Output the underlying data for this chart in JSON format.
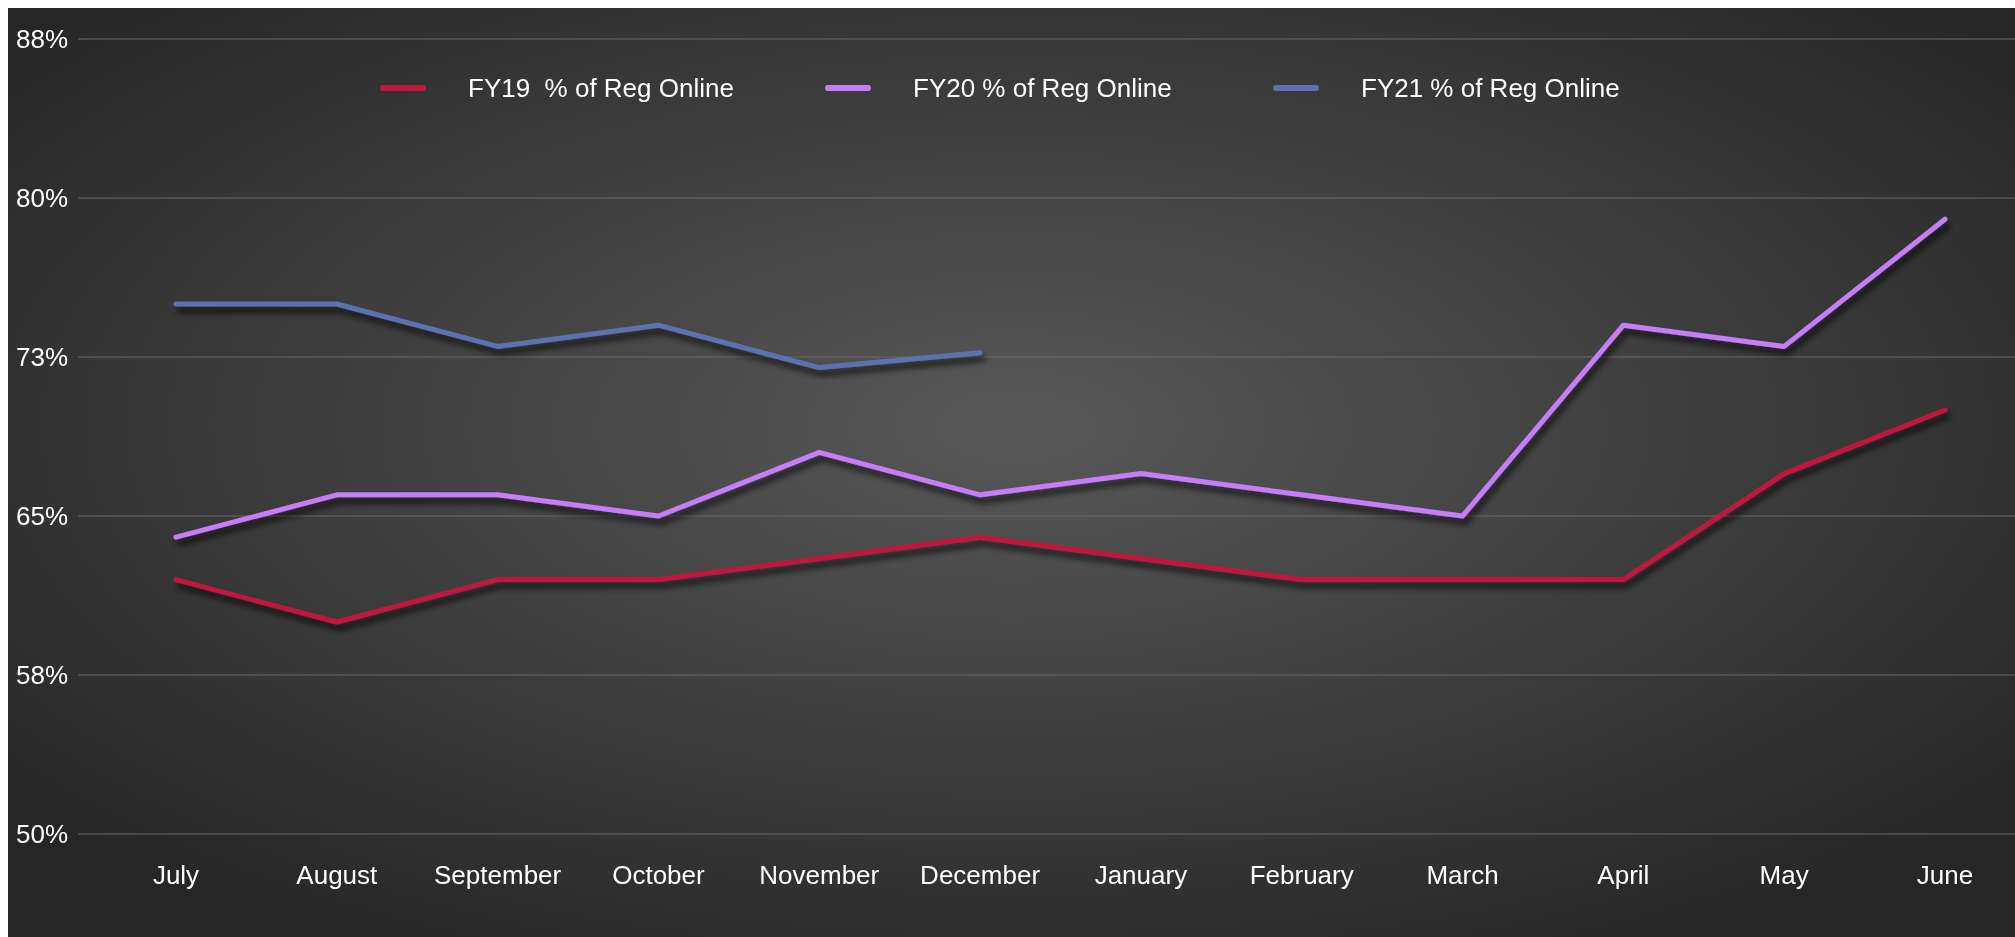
{
  "chart_data": {
    "type": "line",
    "categories": [
      "July",
      "August",
      "September",
      "October",
      "November",
      "December",
      "January",
      "February",
      "March",
      "April",
      "May",
      "June"
    ],
    "series": [
      {
        "name": "FY19  % of Reg Online",
        "color": "#c0183f",
        "values": [
          62,
          60,
          62,
          62,
          63,
          64,
          63,
          62,
          62,
          62,
          67,
          70
        ]
      },
      {
        "name": "FY20 % of Reg Online",
        "color": "#c77dfa",
        "values": [
          64,
          66,
          66,
          65,
          68,
          66,
          67,
          66,
          65,
          74,
          73,
          79
        ]
      },
      {
        "name": "FY21 % of Reg Online",
        "color": "#5c72b0",
        "values": [
          75,
          75,
          73,
          74,
          72,
          72.7,
          null,
          null,
          null,
          null,
          null,
          null
        ]
      }
    ],
    "ylim": [
      50,
      87.5
    ],
    "yticks": [
      {
        "value": 50,
        "label": "50%"
      },
      {
        "value": 57.5,
        "label": "58%"
      },
      {
        "value": 65,
        "label": "65%"
      },
      {
        "value": 72.5,
        "label": "73%"
      },
      {
        "value": 80,
        "label": "80%"
      },
      {
        "value": 87.5,
        "label": "88%"
      }
    ],
    "grid": "y",
    "legend": "top",
    "marker": "none",
    "line_style": "solid"
  }
}
